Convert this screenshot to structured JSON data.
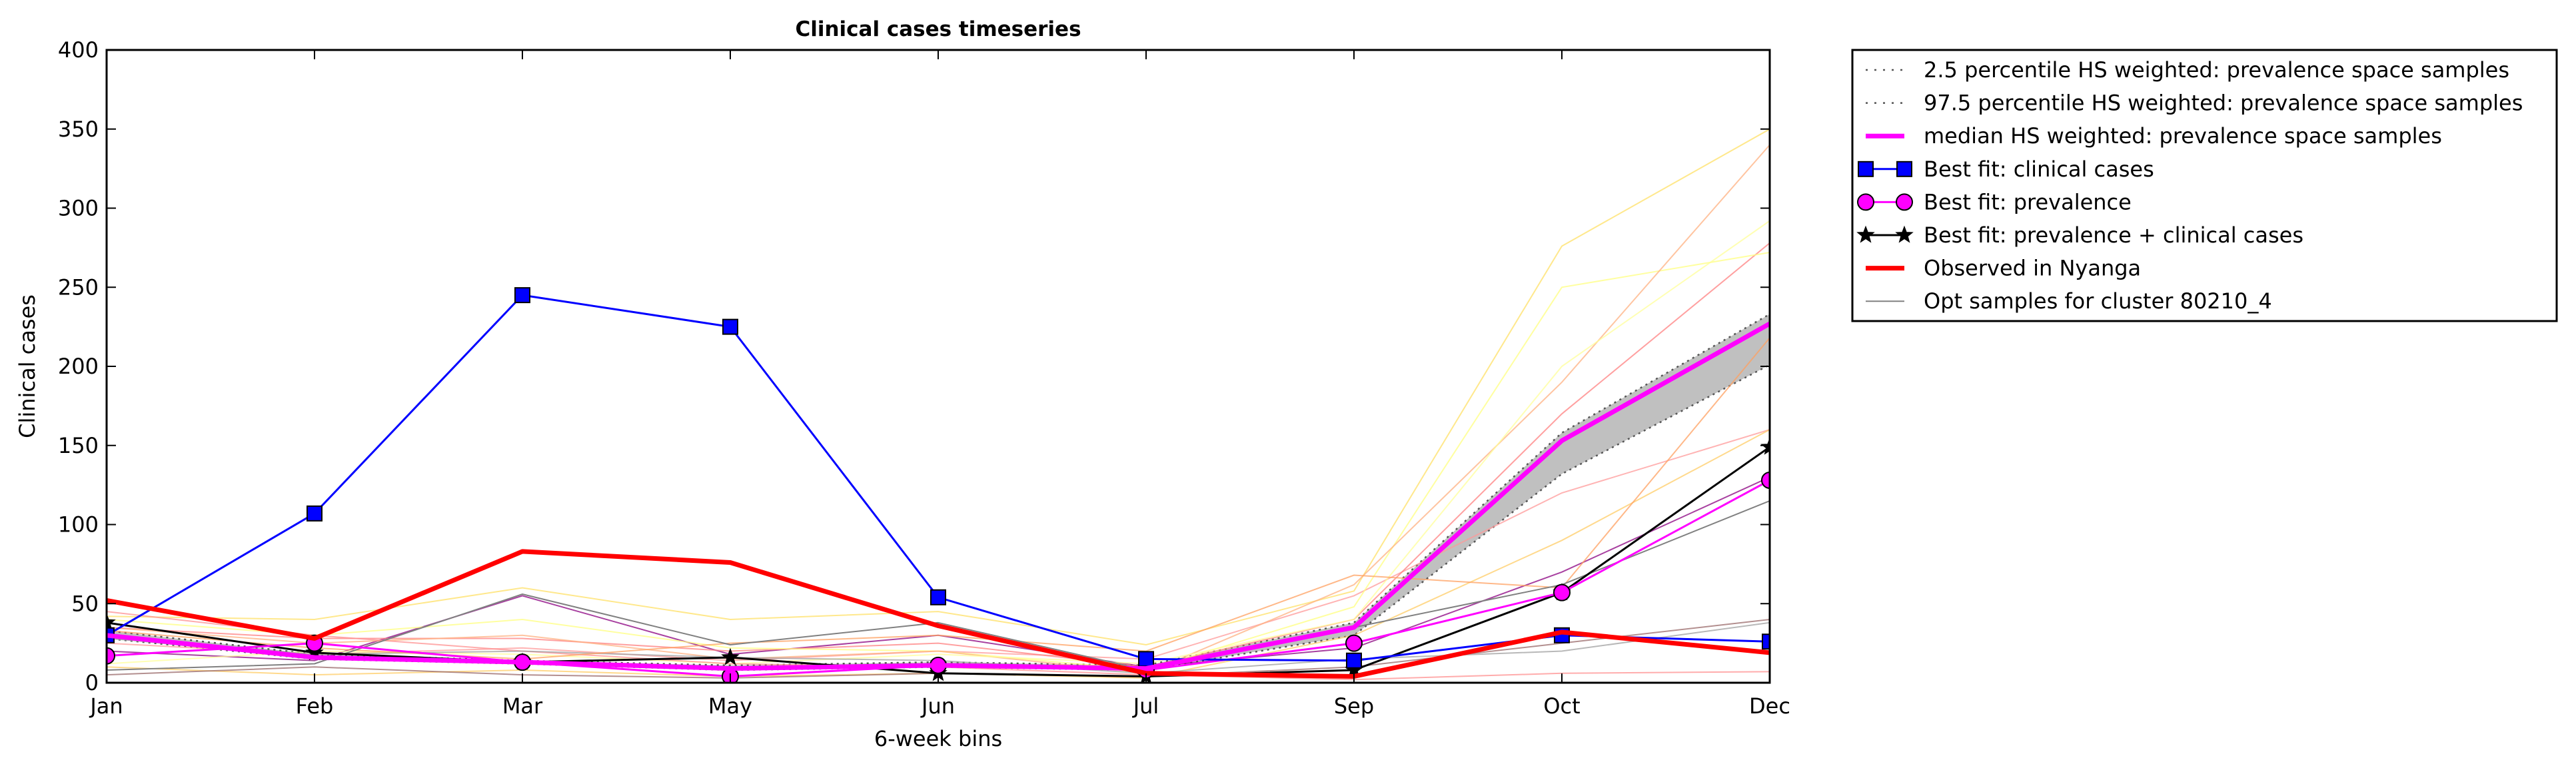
{
  "chart_data": {
    "type": "line",
    "title": "Clinical cases timeseries",
    "xlabel": "6-week bins",
    "ylabel": "Clinical cases",
    "categories": [
      "Jan",
      "Feb",
      "Mar",
      "May",
      "Jun",
      "Jul",
      "Sep",
      "Oct",
      "Dec"
    ],
    "ylim": [
      0,
      400
    ],
    "yticks": [
      0,
      50,
      100,
      150,
      200,
      250,
      300,
      350,
      400
    ],
    "grid": false,
    "legend_position": "outside-top-right",
    "band": {
      "lower_name": "2.5 percentile HS weighted: prevalence space samples",
      "upper_name": "97.5 percentile HS weighted: prevalence space samples",
      "lower": [
        28,
        15,
        12,
        8,
        10,
        8,
        30,
        132,
        201
      ],
      "upper": [
        33,
        18,
        14,
        11,
        13,
        11,
        38,
        158,
        233
      ],
      "fill_color": "#c0c0c0",
      "line_color": "#555555"
    },
    "series": [
      {
        "name": "median HS weighted: prevalence space samples",
        "values": [
          30,
          16,
          13,
          9,
          11,
          9,
          35,
          153,
          227
        ],
        "color": "#ff00ff",
        "marker": "none",
        "line_width": 7
      },
      {
        "name": "Best fit: clinical cases",
        "values": [
          30,
          107,
          245,
          225,
          54,
          15,
          14,
          30,
          26
        ],
        "color": "#0000ff",
        "marker": "square",
        "line_width": 3
      },
      {
        "name": "Best fit: prevalence",
        "values": [
          17,
          25,
          13,
          4,
          11,
          8,
          25,
          57,
          128
        ],
        "color": "#ff00ff",
        "marker": "circle",
        "line_width": 3
      },
      {
        "name": "Best fit: prevalence + clinical cases",
        "values": [
          38,
          19,
          13,
          16,
          6,
          4,
          8,
          57,
          149
        ],
        "color": "#000000",
        "marker": "star",
        "line_width": 3
      },
      {
        "name": "Observed in Nyanga",
        "values": [
          52,
          28,
          83,
          76,
          36,
          6,
          4,
          32,
          19
        ],
        "color": "#ff0000",
        "marker": "none",
        "line_width": 7
      },
      {
        "name": "Opt samples for cluster 80210_4",
        "values": [
          8,
          12,
          56,
          24,
          38,
          8,
          35,
          62,
          115
        ],
        "color": "#808080",
        "marker": "none",
        "line_width": 2
      }
    ],
    "sample_lines": [
      {
        "values": [
          20,
          14,
          55,
          18,
          30,
          10,
          22,
          70,
          130
        ],
        "color": "#8b0080"
      },
      {
        "values": [
          25,
          18,
          22,
          14,
          20,
          15,
          55,
          120,
          160
        ],
        "color": "#ff9999"
      },
      {
        "values": [
          35,
          28,
          28,
          20,
          25,
          10,
          40,
          170,
          278
        ],
        "color": "#ff8080"
      },
      {
        "values": [
          40,
          30,
          40,
          22,
          20,
          8,
          48,
          250,
          272
        ],
        "color": "#ffff80"
      },
      {
        "values": [
          42,
          40,
          60,
          40,
          45,
          24,
          58,
          276,
          350
        ],
        "color": "#ffe066"
      },
      {
        "values": [
          35,
          25,
          30,
          15,
          20,
          6,
          62,
          190,
          340
        ],
        "color": "#ffb080"
      },
      {
        "values": [
          10,
          5,
          8,
          4,
          6,
          3,
          30,
          90,
          160
        ],
        "color": "#ffcc66"
      },
      {
        "values": [
          12,
          20,
          18,
          12,
          18,
          12,
          40,
          200,
          292
        ],
        "color": "#ffff99"
      },
      {
        "values": [
          5,
          10,
          5,
          3,
          6,
          4,
          10,
          25,
          40
        ],
        "color": "#9a6a6a"
      },
      {
        "values": [
          45,
          30,
          20,
          12,
          10,
          5,
          2,
          6,
          7
        ],
        "color": "#ff9090"
      },
      {
        "values": [
          28,
          18,
          20,
          16,
          14,
          6,
          15,
          20,
          38
        ],
        "color": "#a0a0a0"
      },
      {
        "values": [
          33,
          22,
          15,
          25,
          30,
          20,
          68,
          60,
          218
        ],
        "color": "#ffa060"
      }
    ]
  },
  "legend": {
    "items": [
      {
        "label": "2.5 percentile HS weighted: prevalence space samples",
        "style": "dotted",
        "color": "#555555"
      },
      {
        "label": "97.5 percentile HS weighted: prevalence space samples",
        "style": "dotted",
        "color": "#555555"
      },
      {
        "label": "median HS weighted: prevalence space samples",
        "style": "thick",
        "color": "#ff00ff"
      },
      {
        "label": "Best fit: clinical cases",
        "style": "square",
        "color": "#0000ff"
      },
      {
        "label": "Best fit: prevalence",
        "style": "circle",
        "color": "#ff00ff"
      },
      {
        "label": "Best fit: prevalence + clinical cases",
        "style": "star",
        "color": "#000000"
      },
      {
        "label": "Observed in Nyanga",
        "style": "thick",
        "color": "#ff0000"
      },
      {
        "label": "Opt samples for cluster 80210_4",
        "style": "thin",
        "color": "#808080"
      }
    ]
  }
}
